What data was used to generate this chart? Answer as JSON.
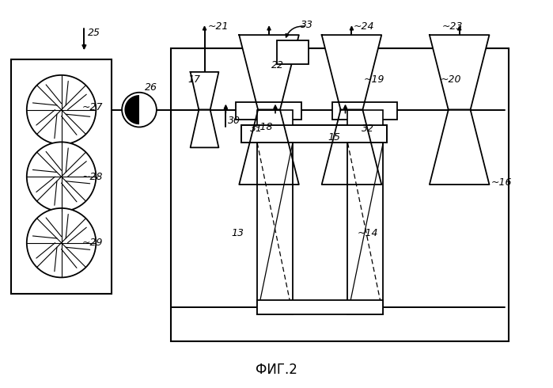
{
  "title": "ФИГ.2",
  "bg_color": "#ffffff",
  "line_color": "#000000",
  "fig_width": 6.99,
  "fig_height": 4.9
}
